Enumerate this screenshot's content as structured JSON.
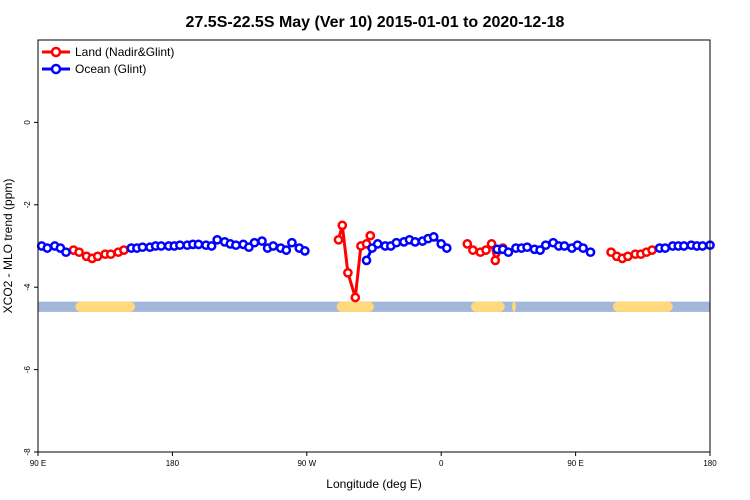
{
  "chart_data": {
    "type": "line",
    "title": "27.5S-22.5S May (Ver 10)   2015-01-01 to 2020-12-18",
    "xlabel": "Longitude (deg E)",
    "ylabel": "XCO2 - MLO trend (ppm)",
    "xlim": [
      90,
      450
    ],
    "ylim": [
      -8,
      2
    ],
    "x_ticks": [
      {
        "value": 90,
        "label": "90 E"
      },
      {
        "value": 162,
        "label": "180"
      },
      {
        "value": 234,
        "label": "90 W"
      },
      {
        "value": 306,
        "label": "0"
      },
      {
        "value": 378,
        "label": "90 E"
      },
      {
        "value": 450,
        "label": "180"
      }
    ],
    "y_ticks": [
      0,
      -2,
      -4,
      -6,
      -8
    ],
    "legend_position": "top-left",
    "series": [
      {
        "name": "Land (Nadir&Glint)",
        "color": "#ff0000",
        "segments": [
          [
            [
              109,
              -3.1
            ],
            [
              112,
              -3.15
            ],
            [
              116,
              -3.25
            ],
            [
              119,
              -3.3
            ],
            [
              122,
              -3.25
            ],
            [
              126,
              -3.2
            ],
            [
              129,
              -3.2
            ],
            [
              133,
              -3.15
            ],
            [
              136,
              -3.1
            ]
          ],
          [
            [
              251,
              -2.85
            ],
            [
              253,
              -2.5
            ],
            [
              256,
              -3.65
            ],
            [
              260,
              -4.25
            ],
            [
              263,
              -3.0
            ],
            [
              266,
              -2.95
            ],
            [
              268,
              -2.75
            ]
          ],
          [
            [
              320,
              -2.95
            ],
            [
              323,
              -3.1
            ],
            [
              327,
              -3.15
            ],
            [
              330,
              -3.1
            ],
            [
              333,
              -2.95
            ],
            [
              335,
              -3.35
            ],
            [
              339,
              -3.05
            ]
          ],
          [
            [
              397,
              -3.15
            ],
            [
              400,
              -3.25
            ],
            [
              403,
              -3.3
            ],
            [
              406,
              -3.25
            ],
            [
              410,
              -3.2
            ],
            [
              413,
              -3.2
            ],
            [
              416,
              -3.15
            ],
            [
              419,
              -3.1
            ]
          ]
        ]
      },
      {
        "name": "Ocean (Glint)",
        "color": "#0000ff",
        "segments": [
          [
            [
              92,
              -3.0
            ],
            [
              95,
              -3.05
            ],
            [
              99,
              -3.0
            ],
            [
              102,
              -3.05
            ],
            [
              105,
              -3.15
            ]
          ],
          [
            [
              140,
              -3.05
            ],
            [
              143,
              -3.05
            ],
            [
              146,
              -3.03
            ],
            [
              150,
              -3.03
            ],
            [
              153,
              -3.0
            ],
            [
              156,
              -3.0
            ],
            [
              160,
              -3.0
            ],
            [
              163,
              -3.0
            ],
            [
              166,
              -2.98
            ],
            [
              170,
              -2.98
            ],
            [
              173,
              -2.96
            ],
            [
              176,
              -2.96
            ],
            [
              180,
              -2.98
            ],
            [
              183,
              -3.0
            ],
            [
              186,
              -2.85
            ],
            [
              190,
              -2.9
            ],
            [
              193,
              -2.95
            ],
            [
              196,
              -2.98
            ],
            [
              200,
              -2.96
            ],
            [
              203,
              -3.03
            ],
            [
              206,
              -2.92
            ],
            [
              210,
              -2.88
            ],
            [
              213,
              -3.05
            ],
            [
              216,
              -3.0
            ],
            [
              220,
              -3.05
            ],
            [
              223,
              -3.1
            ],
            [
              226,
              -2.92
            ],
            [
              230,
              -3.05
            ],
            [
              233,
              -3.12
            ]
          ],
          [
            [
              266,
              -3.35
            ],
            [
              269,
              -3.05
            ],
            [
              272,
              -2.95
            ],
            [
              276,
              -3.0
            ],
            [
              279,
              -3.0
            ],
            [
              282,
              -2.92
            ],
            [
              286,
              -2.9
            ],
            [
              289,
              -2.85
            ],
            [
              292,
              -2.9
            ],
            [
              296,
              -2.88
            ],
            [
              299,
              -2.82
            ],
            [
              302,
              -2.78
            ],
            [
              306,
              -2.95
            ],
            [
              309,
              -3.05
            ]
          ],
          [
            [
              336,
              -3.08
            ],
            [
              339,
              -3.08
            ],
            [
              342,
              -3.15
            ],
            [
              346,
              -3.05
            ],
            [
              349,
              -3.05
            ],
            [
              352,
              -3.03
            ],
            [
              356,
              -3.08
            ],
            [
              359,
              -3.1
            ],
            [
              362,
              -2.98
            ],
            [
              366,
              -2.92
            ],
            [
              369,
              -3.0
            ],
            [
              372,
              -3.0
            ],
            [
              376,
              -3.05
            ],
            [
              379,
              -2.98
            ],
            [
              382,
              -3.05
            ],
            [
              386,
              -3.15
            ]
          ],
          [
            [
              423,
              -3.05
            ],
            [
              426,
              -3.05
            ],
            [
              430,
              -3.0
            ],
            [
              433,
              -3.0
            ],
            [
              436,
              -3.0
            ],
            [
              440,
              -2.98
            ],
            [
              443,
              -3.0
            ],
            [
              446,
              -3.0
            ],
            [
              450,
              -2.98
            ]
          ]
        ]
      }
    ],
    "surface_band": {
      "y_range": [
        -4.6,
        -4.35
      ],
      "ocean_color": "#a2b7d9",
      "land_color": "#ffd97b",
      "land_ranges": [
        [
          110,
          142
        ],
        [
          250,
          270
        ],
        [
          322,
          340
        ],
        [
          344,
          346
        ],
        [
          398,
          430
        ]
      ]
    }
  }
}
